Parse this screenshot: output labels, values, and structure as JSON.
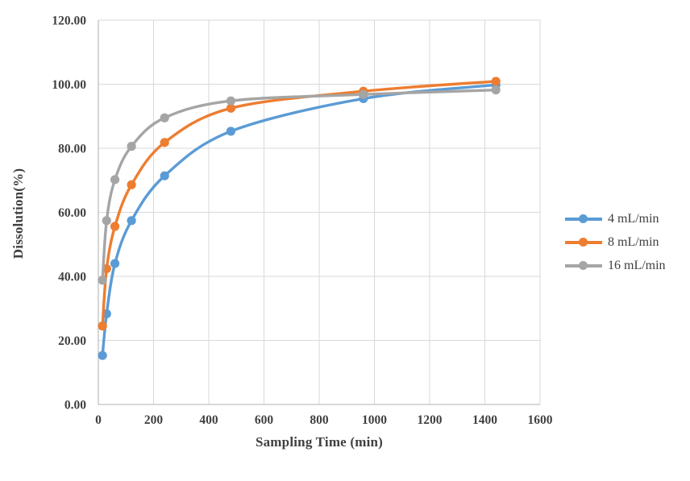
{
  "chart_data": {
    "type": "line",
    "title": "",
    "xlabel": "Sampling Time (min)",
    "ylabel": "Dissolution(%)",
    "x": [
      15,
      30,
      60,
      120,
      240,
      480,
      960,
      1440
    ],
    "series": [
      {
        "name": "4 mL/min",
        "color": "#5B9BD5",
        "values": [
          15.3,
          28.3,
          44.0,
          57.4,
          71.4,
          85.3,
          95.5,
          99.8
        ]
      },
      {
        "name": "8 mL/min",
        "color": "#ED7D31",
        "values": [
          24.5,
          42.4,
          55.6,
          68.6,
          81.8,
          92.5,
          97.8,
          100.9
        ]
      },
      {
        "name": "16 mL/min",
        "color": "#A5A5A5",
        "values": [
          38.8,
          57.4,
          70.2,
          80.6,
          89.5,
          94.8,
          96.8,
          98.2
        ]
      }
    ],
    "xlim": [
      0,
      1600
    ],
    "ylim": [
      0,
      120
    ],
    "x_ticks": [
      {
        "value": 0,
        "label": "0"
      },
      {
        "value": 200,
        "label": "200"
      },
      {
        "value": 400,
        "label": "400"
      },
      {
        "value": 600,
        "label": "600"
      },
      {
        "value": 800,
        "label": "800"
      },
      {
        "value": 1000,
        "label": "1000"
      },
      {
        "value": 1200,
        "label": "1200"
      },
      {
        "value": 1400,
        "label": "1400"
      },
      {
        "value": 1600,
        "label": "1600"
      }
    ],
    "y_ticks": [
      {
        "value": 0,
        "label": "0.00"
      },
      {
        "value": 20,
        "label": "20.00"
      },
      {
        "value": 40,
        "label": "40.00"
      },
      {
        "value": 60,
        "label": "60.00"
      },
      {
        "value": 80,
        "label": "80.00"
      },
      {
        "value": 100,
        "label": "100.00"
      },
      {
        "value": 120,
        "label": "120.00"
      }
    ],
    "grid": true,
    "legend_position": "right",
    "smooth_lines": true
  },
  "style_colors": {
    "gridline": "#D9D9D9",
    "axis_line": "#BFBFBF",
    "text": "#404040",
    "background": "#FFFFFF"
  }
}
